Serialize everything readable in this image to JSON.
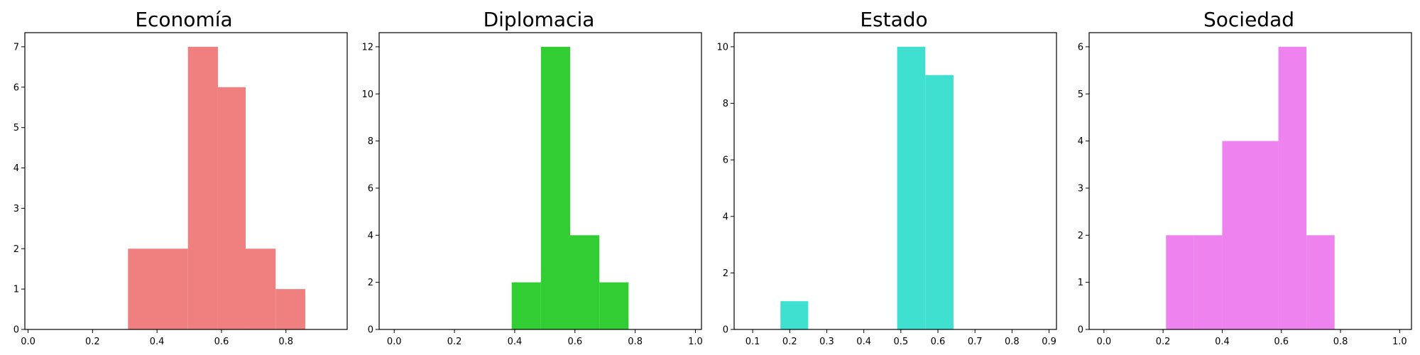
{
  "chart_data": [
    {
      "type": "histogram",
      "title": "Economía",
      "color": "#F08080",
      "xlim": [
        -0.01,
        0.99
      ],
      "ylim": [
        0,
        7.35
      ],
      "xticks": [
        0.0,
        0.2,
        0.4,
        0.6,
        0.8
      ],
      "xtick_labels": [
        "0.0",
        "0.2",
        "0.4",
        "0.6",
        "0.8"
      ],
      "yticks": [
        0,
        1,
        2,
        3,
        4,
        5,
        6,
        7
      ],
      "ytick_labels": [
        "0",
        "1",
        "2",
        "3",
        "4",
        "5",
        "6",
        "7"
      ],
      "bins": [
        {
          "x0": 0.31,
          "x1": 0.403,
          "count": 2
        },
        {
          "x0": 0.403,
          "x1": 0.496,
          "count": 2
        },
        {
          "x0": 0.496,
          "x1": 0.589,
          "count": 7
        },
        {
          "x0": 0.589,
          "x1": 0.675,
          "count": 6
        },
        {
          "x0": 0.675,
          "x1": 0.768,
          "count": 2
        },
        {
          "x0": 0.768,
          "x1": 0.86,
          "count": 1
        }
      ]
    },
    {
      "type": "histogram",
      "title": "Diplomacia",
      "color": "#32CD32",
      "xlim": [
        -0.05,
        1.02
      ],
      "ylim": [
        0,
        12.6
      ],
      "xticks": [
        0.0,
        0.2,
        0.4,
        0.6,
        0.8,
        1.0
      ],
      "xtick_labels": [
        "0.0",
        "0.2",
        "0.4",
        "0.6",
        "0.8",
        "1.0"
      ],
      "yticks": [
        0,
        2,
        4,
        6,
        8,
        10,
        12
      ],
      "ytick_labels": [
        "0",
        "2",
        "4",
        "6",
        "8",
        "10",
        "12"
      ],
      "bins": [
        {
          "x0": 0.39,
          "x1": 0.487,
          "count": 2
        },
        {
          "x0": 0.487,
          "x1": 0.584,
          "count": 12
        },
        {
          "x0": 0.584,
          "x1": 0.681,
          "count": 4
        },
        {
          "x0": 0.681,
          "x1": 0.778,
          "count": 2
        }
      ]
    },
    {
      "type": "histogram",
      "title": "Estado",
      "color": "#40E0D0",
      "xlim": [
        0.05,
        0.92
      ],
      "ylim": [
        0,
        10.5
      ],
      "xticks": [
        0.1,
        0.2,
        0.3,
        0.4,
        0.5,
        0.6,
        0.7,
        0.8,
        0.9
      ],
      "xtick_labels": [
        "0.1",
        "0.2",
        "0.3",
        "0.4",
        "0.5",
        "0.6",
        "0.7",
        "0.8",
        "0.9"
      ],
      "yticks": [
        0,
        2,
        4,
        6,
        8,
        10
      ],
      "ytick_labels": [
        "0",
        "2",
        "4",
        "6",
        "8",
        "10"
      ],
      "bins": [
        {
          "x0": 0.175,
          "x1": 0.25,
          "count": 1
        },
        {
          "x0": 0.49,
          "x1": 0.566,
          "count": 10
        },
        {
          "x0": 0.566,
          "x1": 0.642,
          "count": 9
        }
      ]
    },
    {
      "type": "histogram",
      "title": "Sociedad",
      "color": "#EE82EE",
      "xlim": [
        -0.05,
        1.04
      ],
      "ylim": [
        0,
        6.3
      ],
      "xticks": [
        0.0,
        0.2,
        0.4,
        0.6,
        0.8,
        1.0
      ],
      "xtick_labels": [
        "0.0",
        "0.2",
        "0.4",
        "0.6",
        "0.8",
        "1.0"
      ],
      "yticks": [
        0,
        1,
        2,
        3,
        4,
        5,
        6
      ],
      "ytick_labels": [
        "0",
        "1",
        "2",
        "3",
        "4",
        "5",
        "6"
      ],
      "bins": [
        {
          "x0": 0.21,
          "x1": 0.305,
          "count": 2
        },
        {
          "x0": 0.305,
          "x1": 0.4,
          "count": 2
        },
        {
          "x0": 0.4,
          "x1": 0.495,
          "count": 4
        },
        {
          "x0": 0.495,
          "x1": 0.59,
          "count": 4
        },
        {
          "x0": 0.59,
          "x1": 0.685,
          "count": 6
        },
        {
          "x0": 0.685,
          "x1": 0.78,
          "count": 2
        }
      ]
    }
  ]
}
